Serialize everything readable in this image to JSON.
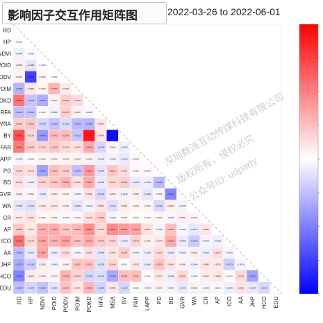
{
  "header": {
    "title": "影响因子交互作用矩阵图",
    "date_range": "2022-03-26 to 2022-06-01"
  },
  "watermark": {
    "lines": [
      "深圳数派互动传媒科技有限公司",
      "版权所有，侵权必究",
      "公众号ID: udparty"
    ]
  },
  "colors": {
    "negative": "#0000ff",
    "neutral": "#ffffff",
    "positive": "#ff0000"
  },
  "chart_data": {
    "type": "heatmap",
    "layout": "lower-triangle",
    "labels": [
      "RD",
      "HP",
      "NDVI",
      "POID",
      "PODV",
      "POIM",
      "POKD",
      "RFA",
      "MSA",
      "BY",
      "FAR",
      "LAPP",
      "PD",
      "BD",
      "GVR",
      "WA",
      "CR",
      "AP",
      "ICO",
      "AA",
      "JHP",
      "HCO",
      "EDU"
    ],
    "colorbar": {
      "ticks": [
        1.0,
        0.75,
        0.5,
        0.25,
        0.0,
        -0.25,
        -0.5,
        -0.75,
        -1.0
      ],
      "range": [
        -1,
        1
      ]
    },
    "values": [
      [],
      [
        0.001
      ],
      [
        -0.0044,
        -0.0014
      ],
      [
        0.005,
        -0.008,
        0.0
      ],
      [
        0.003,
        -0.085,
        0.002,
        0.0
      ],
      [
        -0.028,
        0.008,
        0.003,
        0.028,
        0.006
      ],
      [
        0.059,
        -0.022,
        -0.031,
        0.004,
        0.018,
        0.012
      ],
      [
        -0.023,
        -0.021,
        0.001,
        -0.004,
        0.017,
        0.004,
        -0.002
      ],
      [
        0.018,
        0.02,
        -0.014,
        -0.022,
        -0.012,
        -0.026,
        -0.028,
        0.008
      ],
      [
        0.078,
        0.013,
        -0.042,
        0.024,
        0.025,
        -0.021,
        0.107,
        0.008,
        -0.112
      ],
      [
        0.056,
        0.018,
        0.015,
        0.021,
        0.013,
        0.01,
        0.033,
        -0.014,
        0.003,
        -0.005
      ],
      [
        -0.003,
        -0.001,
        0.003,
        0.003,
        0.004,
        0.004,
        0.003,
        -0.005,
        -0.004,
        -0.007,
        0.002
      ],
      [
        0.014,
        0.011,
        -0.036,
        0.023,
        0.018,
        -0.023,
        0.04,
        -0.009,
        0.021,
        0.011,
        0.002,
        0.002
      ],
      [
        0.01,
        -0.005,
        0.016,
        0.02,
        0.029,
        0.01,
        0.033,
        -0.006,
        0.013,
        0.019,
        -0.007,
        -0.005,
        -0.026
      ],
      [
        0.004,
        0.003,
        -0.006,
        0.005,
        0.003,
        -0.003,
        0.009,
        -0.014,
        0.005,
        -0.004,
        0.005,
        -0.008,
        0.002,
        -0.05
      ],
      [
        -0.008,
        -0.01,
        0.006,
        0.007,
        0.004,
        -0.008,
        -0.004,
        0.009,
        -0.011,
        0.006,
        0.003,
        0.003,
        -0.013,
        0.005,
        -0.003
      ],
      [
        0.007,
        0.01,
        0.002,
        0.003,
        -0.002,
        0.002,
        0.011,
        0.018,
        -0.003,
        0.003,
        0.001,
        0.001,
        0.003,
        -0.002,
        0.005,
        0.003
      ],
      [
        0.02,
        0.007,
        0.031,
        0.032,
        0.021,
        0.027,
        0.046,
        0.013,
        0.048,
        0.041,
        0.037,
        0.011,
        -0.003,
        0.023,
        -0.002,
        -0.007,
        0.008
      ],
      [
        0.061,
        0.013,
        0.035,
        0.029,
        0.037,
        0.023,
        0.031,
        0.019,
        0.014,
        -0.006,
        0.015,
        0.005,
        0.007,
        0.033,
        -0.006,
        -0.019,
        -0.003,
        -0.005
      ],
      [
        -0.026,
        -0.007,
        0.036,
        -0.005,
        0.012,
        -0.003,
        0.01,
        -0.008,
        0.009,
        0.018,
        -0.004,
        -0.005,
        0.012,
        -0.006,
        -0.003,
        0.005,
        -0.005,
        0.01,
        -0.003
      ],
      [
        -0.032,
        -0.018,
        0.005,
        -0.004,
        0.004,
        0.021,
        0.021,
        -0.01,
        0.014,
        0.001,
        0.007,
        -0.006,
        0.022,
        0.009,
        0.004,
        -0.004,
        0.008,
        0.007,
        -0.017,
        -0.003
      ],
      [
        -0.051,
        0.006,
        0.005,
        0.003,
        0.029,
        0.016,
        -0.015,
        -0.012,
        -0.034,
        0.025,
        0.024,
        0.001,
        0.007,
        -0.005,
        0.013,
        -0.002,
        0.006,
        0.008,
        -0.001,
        0.013,
        -0.037
      ],
      [
        -0.023,
        -0.014,
        -0.022,
        -0.008,
        0.023,
        0.007,
        0.028,
        -0.015,
        0.008,
        -0.014,
        0.002,
        -0.003,
        0.004,
        -0.003,
        -0.007,
        0.005,
        -0.003,
        0.002,
        -0.005,
        0.009,
        -0.007,
        -0.013
      ]
    ]
  }
}
